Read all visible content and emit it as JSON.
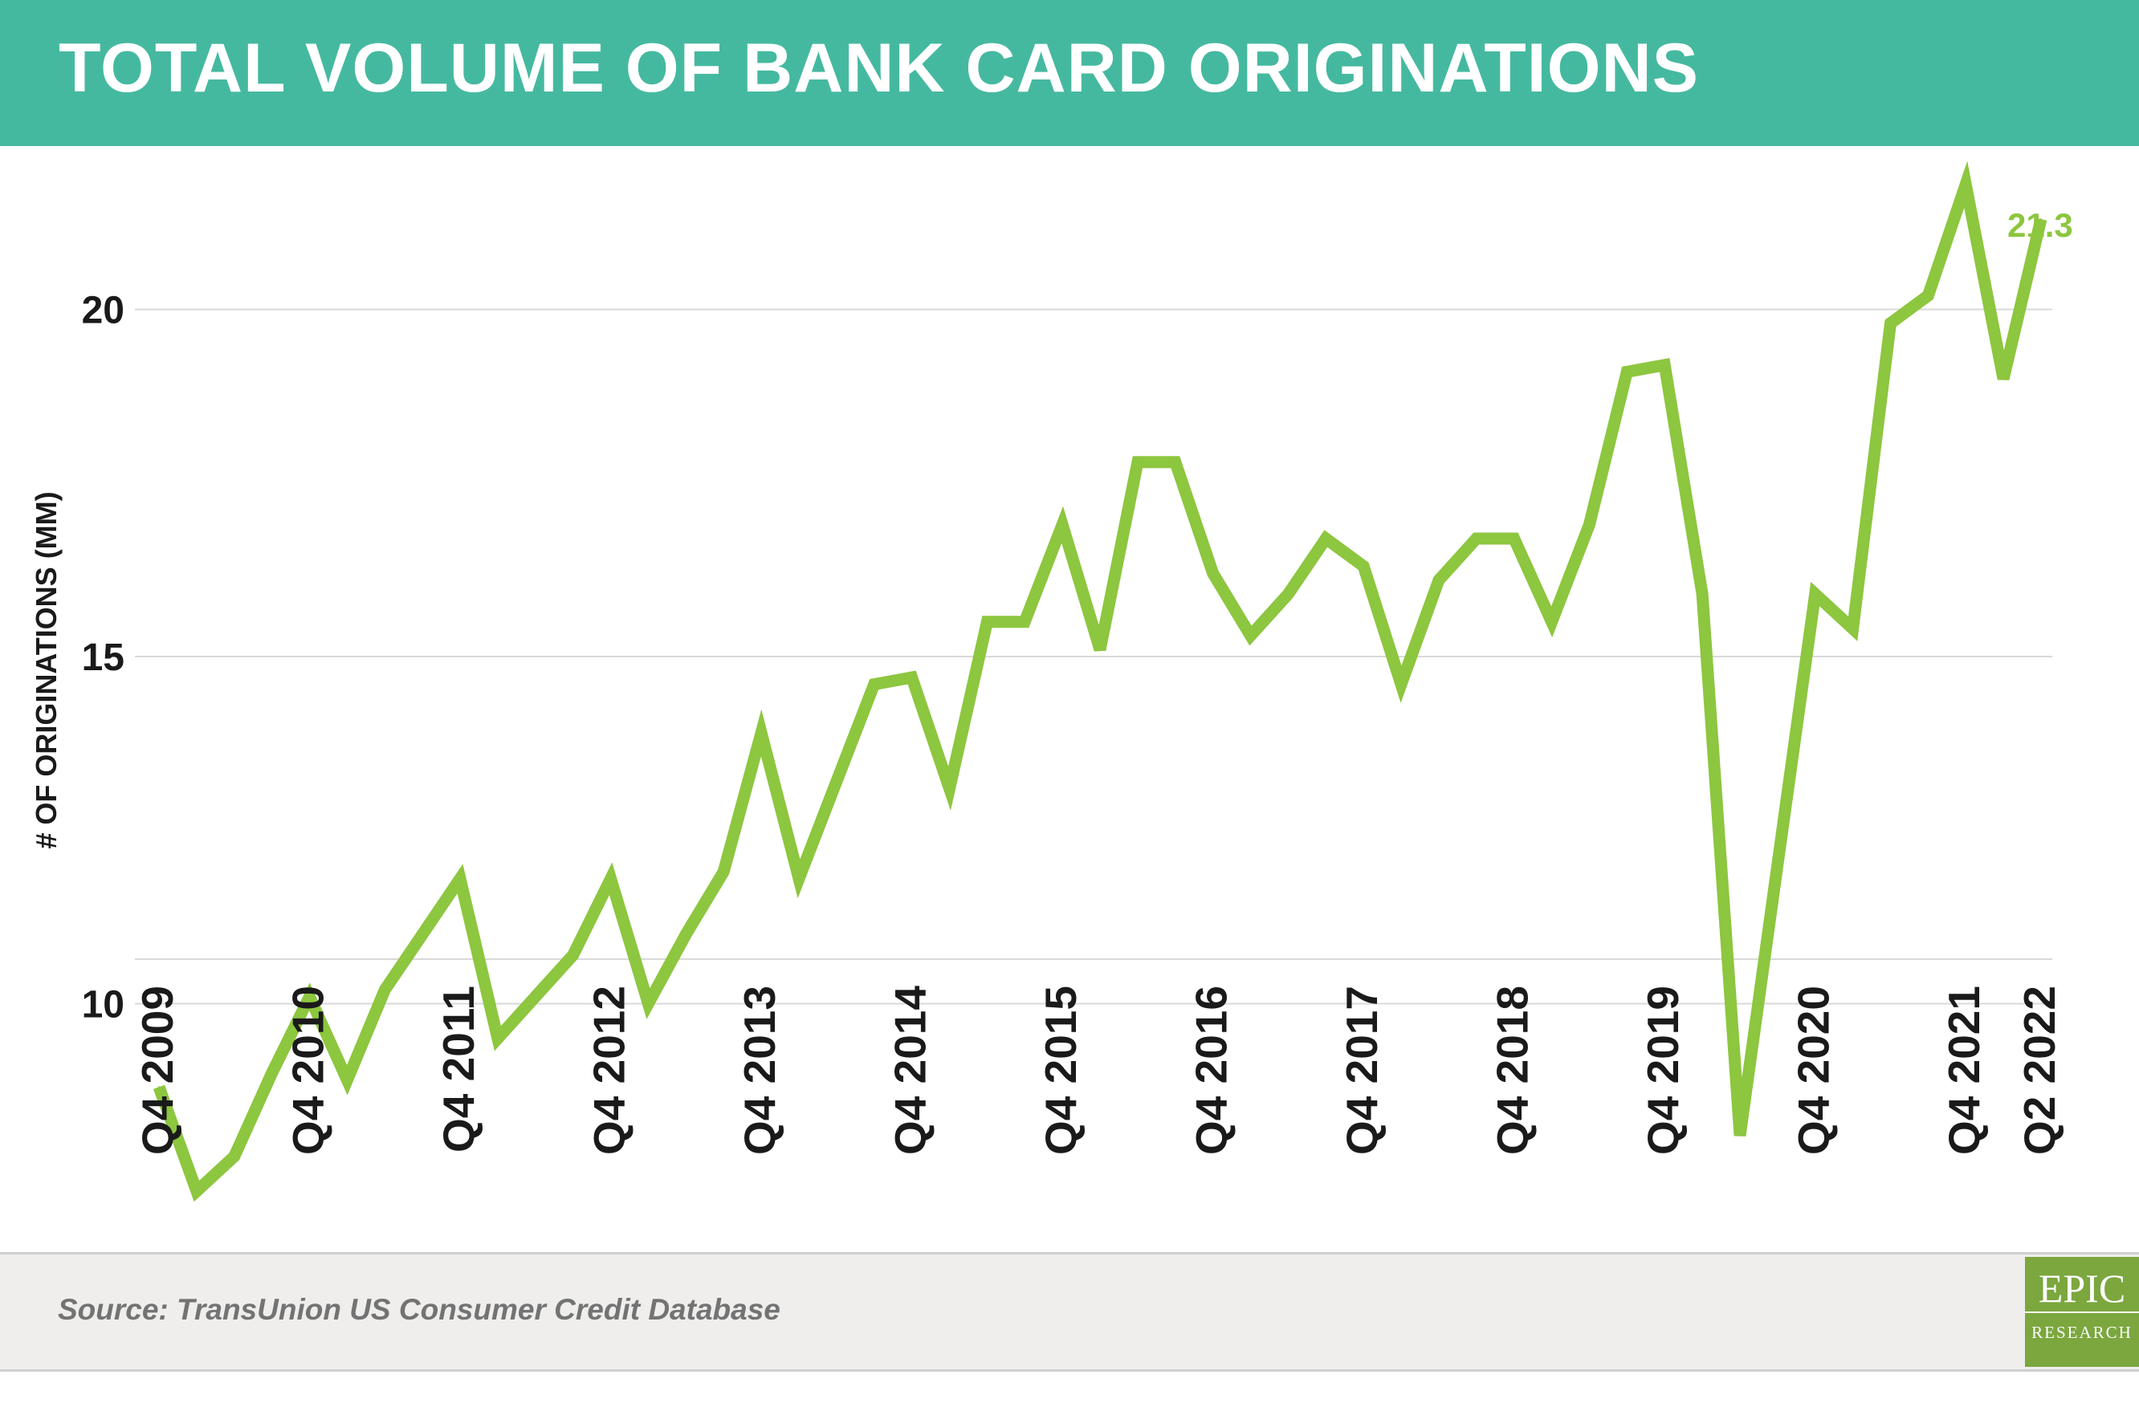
{
  "header": {
    "title": "TOTAL VOLUME OF BANK CARD ORIGINATIONS"
  },
  "footer": {
    "source": "Source: TransUnion US Consumer Credit Database"
  },
  "logo": {
    "main": "EPIC",
    "sub": "RESEARCH"
  },
  "colors": {
    "header_bg": "#45b9a0",
    "line": "#8dc63f",
    "label": "#8dc63f",
    "grid": "#d9d9d9",
    "axis_text": "#1a1a1a"
  },
  "chart_data": {
    "type": "line",
    "title": "TOTAL VOLUME OF BANK CARD ORIGINATIONS",
    "ylabel": "# OF ORIGINATIONS (MM)",
    "xlabel": "",
    "ylim": [
      6,
      22.5
    ],
    "yticks": [
      10,
      15,
      20
    ],
    "grid": true,
    "x": [
      "Q4 2009",
      "Q1 2010",
      "Q2 2010",
      "Q3 2010",
      "Q4 2010",
      "Q1 2011",
      "Q2 2011",
      "Q3 2011",
      "Q4 2011",
      "Q1 2012",
      "Q2 2012",
      "Q3 2012",
      "Q4 2012",
      "Q1 2013",
      "Q2 2013",
      "Q3 2013",
      "Q4 2013",
      "Q1 2014",
      "Q2 2014",
      "Q3 2014",
      "Q4 2014",
      "Q1 2015",
      "Q2 2015",
      "Q3 2015",
      "Q4 2015",
      "Q1 2016",
      "Q2 2016",
      "Q3 2016",
      "Q4 2016",
      "Q1 2017",
      "Q2 2017",
      "Q3 2017",
      "Q4 2017",
      "Q1 2018",
      "Q2 2018",
      "Q3 2018",
      "Q4 2018",
      "Q1 2019",
      "Q2 2019",
      "Q3 2019",
      "Q4 2019",
      "Q1 2020",
      "Q2 2020",
      "Q3 2020",
      "Q4 2020",
      "Q1 2021",
      "Q2 2021",
      "Q3 2021",
      "Q4 2021",
      "Q1 2022",
      "Q2 2022"
    ],
    "xtick_labels": [
      "Q4 2009",
      "Q4 2010",
      "Q4 2011",
      "Q4 2012",
      "Q4 2013",
      "Q4 2014",
      "Q4 2015",
      "Q4 2016",
      "Q4 2017",
      "Q4 2018",
      "Q4 2019",
      "Q4 2020",
      "Q4 2021",
      "Q2 2022"
    ],
    "series": [
      {
        "values": [
          8.8,
          7.3,
          7.8,
          9.0,
          10.1,
          8.9,
          10.2,
          11.0,
          11.8,
          9.5,
          10.1,
          10.7,
          11.8,
          10.0,
          11.0,
          11.9,
          13.9,
          11.8,
          13.2,
          14.6,
          14.7,
          13.1,
          15.5,
          15.5,
          16.9,
          15.1,
          17.8,
          17.8,
          16.2,
          15.3,
          15.9,
          16.7,
          16.3,
          14.6,
          16.1,
          16.7,
          16.7,
          15.5,
          16.9,
          19.1,
          19.2,
          15.9,
          8.1,
          12.0,
          15.9,
          15.4,
          19.8,
          20.2,
          21.8,
          19.0,
          21.3
        ]
      }
    ],
    "annotations": [
      {
        "x": "Q2 2022",
        "text": "21.3"
      }
    ]
  }
}
